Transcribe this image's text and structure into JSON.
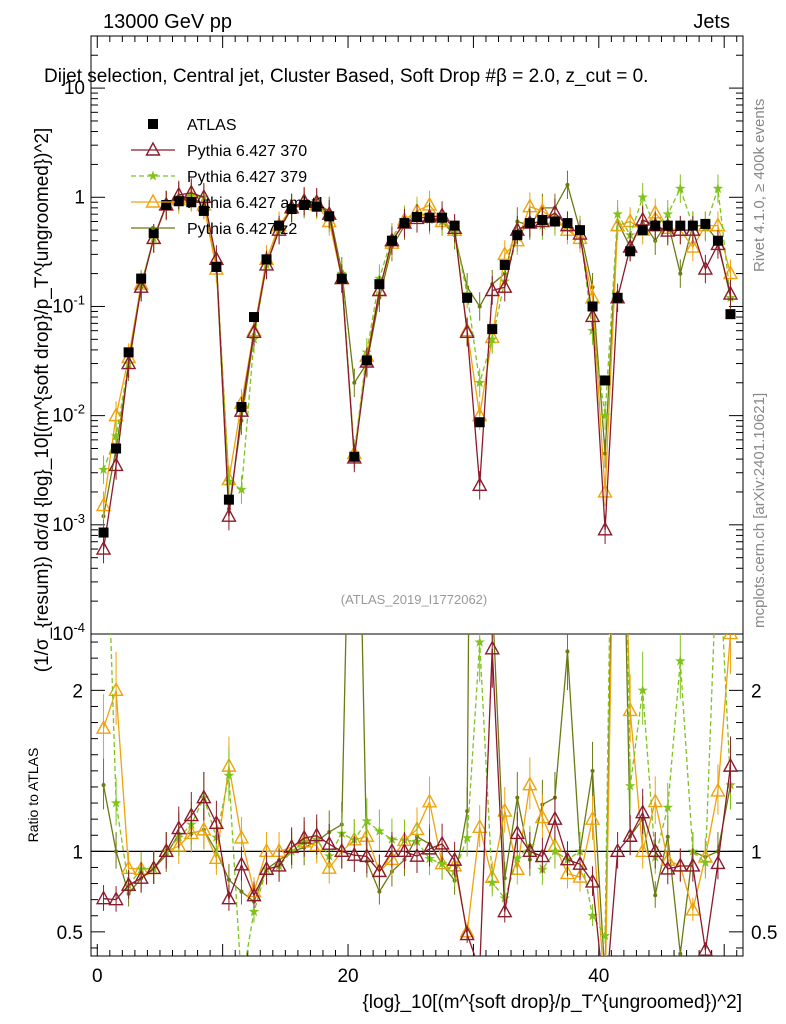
{
  "header": {
    "energy_label": "13000 GeV pp",
    "process_label": "Jets",
    "plot_title": "Dijet selection, Central jet, Cluster Based, Soft Drop #β = 2.0, z_cut = 0.",
    "analysis_id": "(ATLAS_2019_I1772062)"
  },
  "side_labels": {
    "rivet": "Rivet 4.1.0, ≥ 400k events",
    "site": "mcplots.cern.ch [arXiv:2401.10621]"
  },
  "axes": {
    "ylabel_main": "(1/σ_{resum}) dσ/d {log}_10[(m^{soft drop}/p_T^{ungroomed})^2]",
    "ylabel_ratio": "Ratio to ATLAS",
    "xlabel": "{log}_10[(m^{soft drop}/p_T^{ungroomed})^2]"
  },
  "chart_data": {
    "type": "scatter",
    "title": "Dijet selection, Central jet, Cluster Based, Soft Drop #β = 2.0, z_cut = 0.",
    "xlim": [
      -0.5,
      51.5
    ],
    "ylim_main": [
      0.0001,
      30
    ],
    "ylim_ratio": [
      0.35,
      2.35
    ],
    "yscale_main": "log",
    "x_ticks": [
      0,
      20,
      40
    ],
    "x_tick_labels": [
      "0",
      "20",
      "40"
    ],
    "y_ticks_main": [
      0.0001,
      0.001,
      0.01,
      0.1,
      1,
      10
    ],
    "y_tick_labels_main": [
      "10^-4",
      "10^-3",
      "10^-2",
      "10^-1",
      "1",
      "10"
    ],
    "y_ticks_ratio": [
      0.5,
      1,
      2
    ],
    "y_tick_labels_ratio": [
      "0.5",
      "1",
      "2"
    ],
    "legend_position": "top-left",
    "x": [
      0.5,
      1.5,
      2.5,
      3.5,
      4.5,
      5.5,
      6.5,
      7.5,
      8.5,
      9.5,
      10.5,
      11.5,
      12.5,
      13.5,
      14.5,
      15.5,
      16.5,
      17.5,
      18.5,
      19.5,
      20.5,
      21.5,
      22.5,
      23.5,
      24.5,
      25.5,
      26.5,
      27.5,
      28.5,
      29.5,
      30.5,
      31.5,
      32.5,
      33.5,
      34.5,
      35.5,
      36.5,
      37.5,
      38.5,
      39.5,
      40.5,
      41.5,
      42.5,
      43.5,
      44.5,
      45.5,
      46.5,
      47.5,
      48.5,
      49.5,
      50.5
    ],
    "series": [
      {
        "name": "ATLAS",
        "color": "#000000",
        "marker": "square",
        "values": [
          0.00085,
          0.005,
          0.038,
          0.18,
          0.47,
          0.85,
          0.92,
          0.9,
          0.75,
          0.23,
          0.0017,
          0.012,
          0.08,
          0.27,
          0.55,
          0.78,
          0.85,
          0.82,
          0.67,
          0.18,
          0.0042,
          0.032,
          0.16,
          0.4,
          0.58,
          0.66,
          0.65,
          0.65,
          0.55,
          0.12,
          0.0087,
          0.062,
          0.24,
          0.45,
          0.58,
          0.62,
          0.6,
          0.58,
          0.5,
          0.1,
          0.021,
          0.12,
          0.32,
          0.5,
          0.55,
          0.55,
          0.55,
          0.55,
          0.57,
          0.4,
          0.085
        ]
      },
      {
        "name": "Pythia 6.427 370",
        "color": "#8b1a2b",
        "marker": "triangle",
        "values": [
          0.0006,
          0.0035,
          0.03,
          0.15,
          0.42,
          0.85,
          1.05,
          1.1,
          1.0,
          0.27,
          0.0012,
          0.011,
          0.058,
          0.24,
          0.5,
          0.8,
          0.92,
          0.9,
          0.7,
          0.18,
          0.0041,
          0.031,
          0.14,
          0.4,
          0.58,
          0.64,
          0.66,
          0.68,
          0.52,
          0.058,
          0.0023,
          0.14,
          0.15,
          0.5,
          0.58,
          0.6,
          0.72,
          0.55,
          0.46,
          0.081,
          0.0009,
          0.12,
          0.35,
          0.62,
          0.55,
          0.49,
          0.5,
          0.5,
          0.22,
          0.37,
          0.13
        ]
      },
      {
        "name": "Pythia 6.427 379",
        "color": "#7fc31c",
        "marker": "star",
        "values": [
          0.0032,
          0.0065,
          0.03,
          0.16,
          0.42,
          0.85,
          1.0,
          1.05,
          1.0,
          0.25,
          0.0025,
          0.0021,
          0.05,
          0.24,
          0.5,
          0.78,
          0.9,
          0.88,
          0.65,
          0.2,
          0.0045,
          0.038,
          0.18,
          0.43,
          0.62,
          0.7,
          0.62,
          0.6,
          0.48,
          0.13,
          0.02,
          0.05,
          0.17,
          0.43,
          0.6,
          0.55,
          0.6,
          0.55,
          0.5,
          0.06,
          0.01,
          0.7,
          0.45,
          1.0,
          0.53,
          0.7,
          1.2,
          0.55,
          0.53,
          1.2,
          0.12
        ]
      },
      {
        "name": "Pythia 6.427 ambt1",
        "color": "#f0a30a",
        "marker": "triangle",
        "values": [
          0.0015,
          0.01,
          0.034,
          0.16,
          0.42,
          0.85,
          0.95,
          1.0,
          0.85,
          0.22,
          0.0026,
          0.013,
          0.06,
          0.27,
          0.55,
          0.8,
          0.9,
          0.85,
          0.6,
          0.18,
          0.0045,
          0.035,
          0.14,
          0.38,
          0.62,
          0.75,
          0.85,
          0.6,
          0.5,
          0.06,
          0.01,
          0.052,
          0.3,
          0.4,
          0.82,
          0.75,
          0.62,
          0.5,
          0.42,
          0.12,
          0.002,
          0.55,
          0.6,
          0.5,
          0.72,
          0.52,
          0.5,
          0.35,
          0.55,
          0.55,
          0.2
        ]
      },
      {
        "name": "Pythia 6.427 z2",
        "color": "#6b7a12",
        "marker": "circle",
        "values": [
          0.0012,
          0.005,
          0.028,
          0.15,
          0.42,
          0.83,
          1.02,
          1.0,
          0.85,
          0.23,
          0.0014,
          0.009,
          0.055,
          0.24,
          0.52,
          0.78,
          0.87,
          0.87,
          0.75,
          0.21,
          0.02,
          0.03,
          0.12,
          0.35,
          0.55,
          0.72,
          0.68,
          0.6,
          0.45,
          0.15,
          0.1,
          0.16,
          0.2,
          0.6,
          0.55,
          0.8,
          0.8,
          1.3,
          0.5,
          0.15,
          0.0045,
          0.6,
          0.35,
          0.6,
          0.4,
          0.6,
          0.2,
          0.55,
          0.55,
          0.4,
          0.12
        ]
      }
    ]
  }
}
